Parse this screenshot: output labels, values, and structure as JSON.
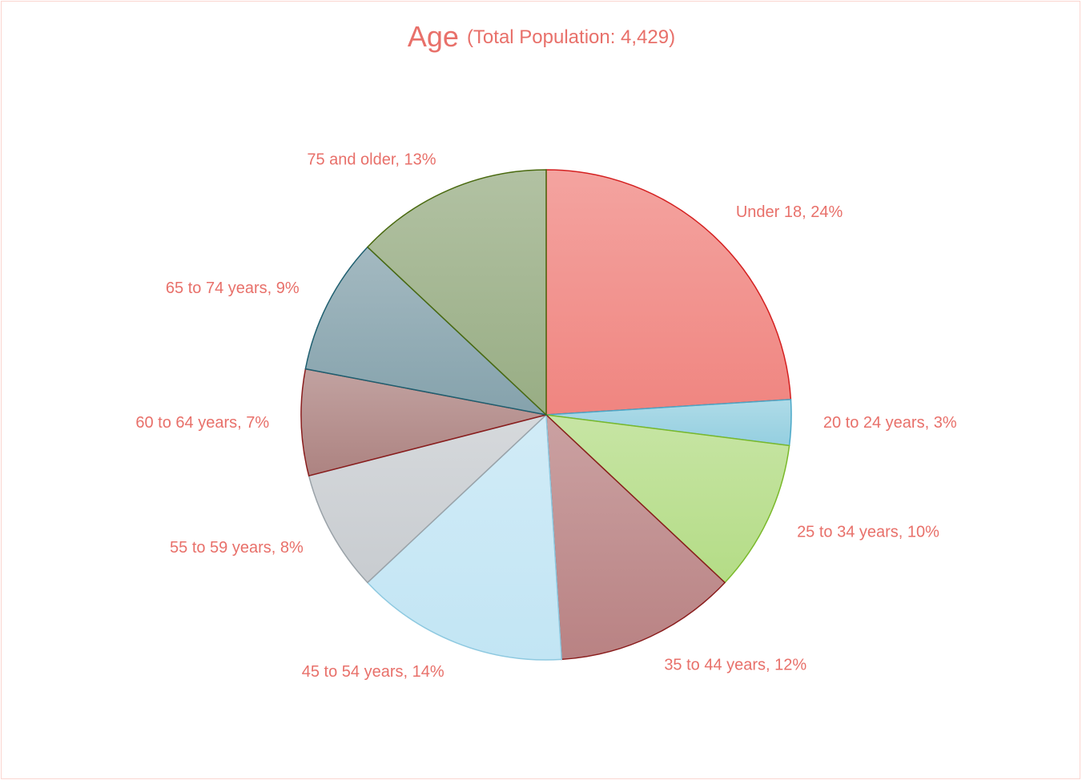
{
  "chart_data": {
    "type": "pie",
    "title": "Age",
    "subtitle": "(Total Population: 4,429)",
    "values": [
      24,
      3,
      10,
      12,
      14,
      8,
      7,
      9,
      13
    ],
    "value_labels": [
      "Under 18, 24%",
      "20 to 24 years, 3%",
      "25 to 34 years, 10%",
      "35 to 44 years, 12%",
      "45 to 54 years, 14%",
      "55 to 59 years, 8%",
      "60 to 64 years, 7%",
      "65 to 74 years, 9%",
      "75 and older, 13%"
    ],
    "colors": [
      "#f08580",
      "#94cfe0",
      "#b4dc86",
      "#b98283",
      "#c2e5f4",
      "#c8ccd0",
      "#ad8381",
      "#85a2ac",
      "#98ad84"
    ],
    "stroke_colors": [
      "#d42020",
      "#4aa8c8",
      "#7ab92a",
      "#8a1d1d",
      "#8ec9e0",
      "#9aa2a8",
      "#8a1d1d",
      "#1f5f70",
      "#4a6a10"
    ]
  }
}
